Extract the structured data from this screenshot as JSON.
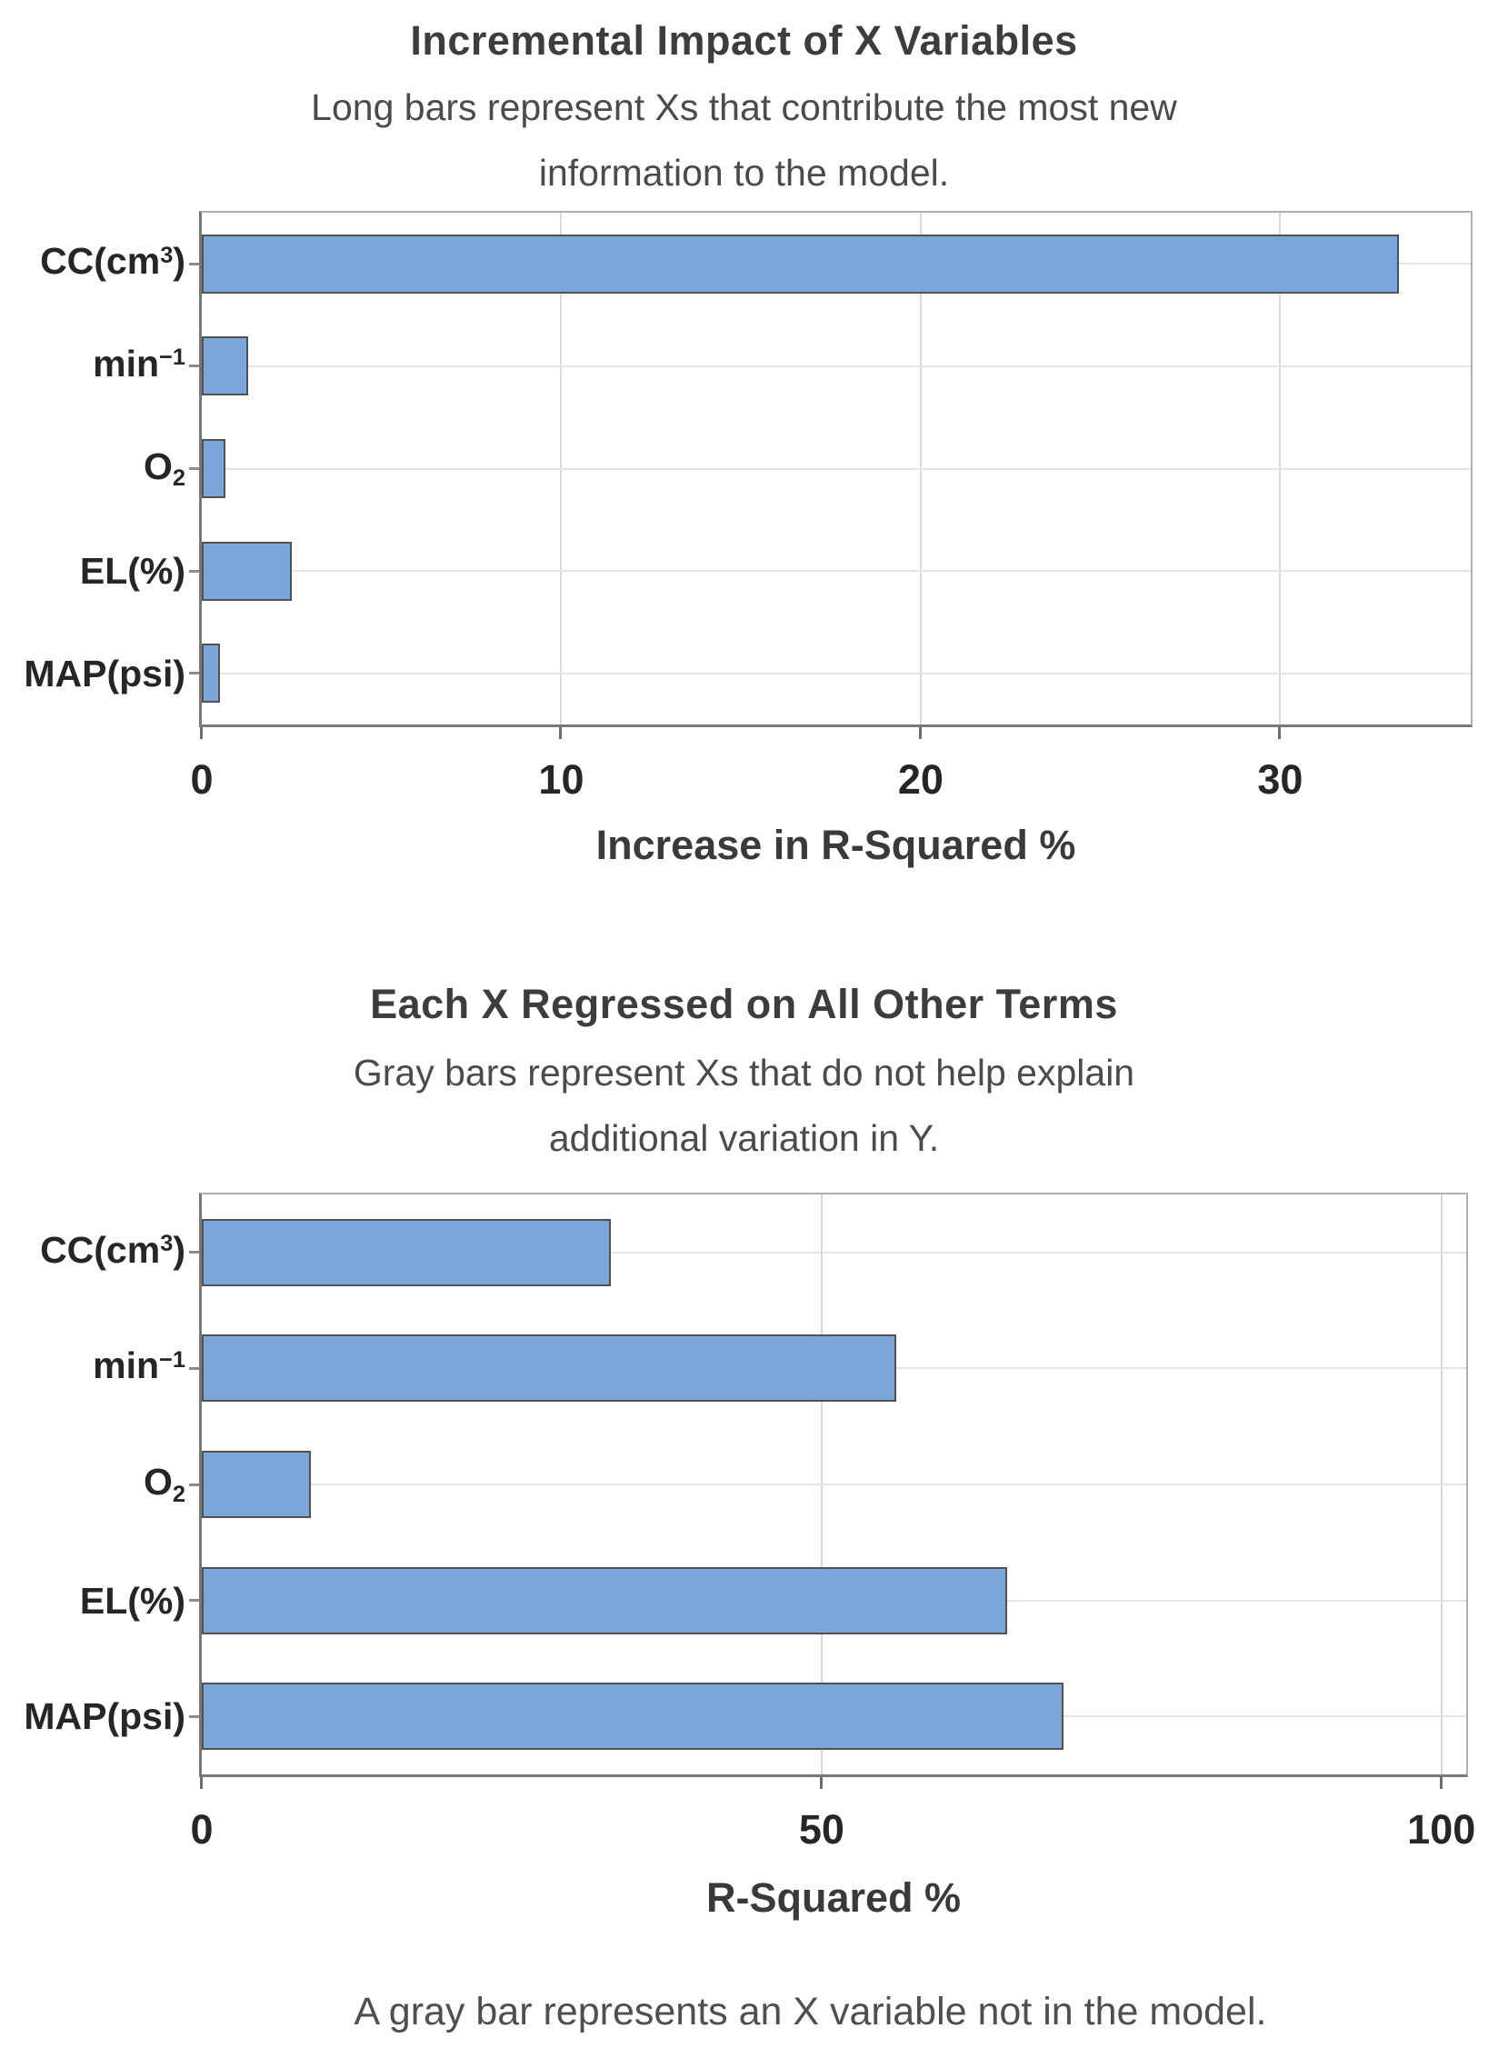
{
  "figure": {
    "footer": "A gray bar represents an X variable not in the model."
  },
  "colors": {
    "bar_fill": "#7CA6DA",
    "bar_border": "#515151",
    "vertical_grid": "#d9d9d9",
    "horizontal_grid": "#e4e4e4",
    "axis_spine": "#787878",
    "frame": "#b0b0b0",
    "title_text": "#3d3d3d",
    "subtitle_text": "#4b4b4b",
    "tick_text": "#262626",
    "footer_text": "#4f4f4f"
  },
  "chart_data": [
    {
      "type": "bar",
      "orientation": "horizontal",
      "title": "Incremental Impact of X Variables",
      "subtitle": "Long bars represent Xs that contribute the most new\ninformation to the model.",
      "xlabel": "Increase in R-Squared %",
      "categories": [
        "CC(cm³)",
        "min⁻¹",
        "O₂",
        "EL(%)",
        "MAP(psi)"
      ],
      "values": [
        33.3,
        1.3,
        0.65,
        2.5,
        0.5
      ],
      "xticks": [
        0,
        10,
        20,
        30
      ],
      "xlim": [
        0,
        35.3
      ],
      "grid": true,
      "legend": "none",
      "bar_fraction": 0.58
    },
    {
      "type": "bar",
      "orientation": "horizontal",
      "title": "Each X Regressed on All Other Terms",
      "subtitle": "Gray bars represent Xs that do not help explain\nadditional variation in Y.",
      "xlabel": "R-Squared %",
      "categories": [
        "CC(cm³)",
        "min⁻¹",
        "O₂",
        "EL(%)",
        "MAP(psi)"
      ],
      "values": [
        33,
        56,
        8.8,
        65,
        69.5
      ],
      "xticks": [
        0,
        50,
        100
      ],
      "xlim": [
        0,
        102
      ],
      "grid": true,
      "legend": "none",
      "bar_fraction": 0.58
    }
  ]
}
